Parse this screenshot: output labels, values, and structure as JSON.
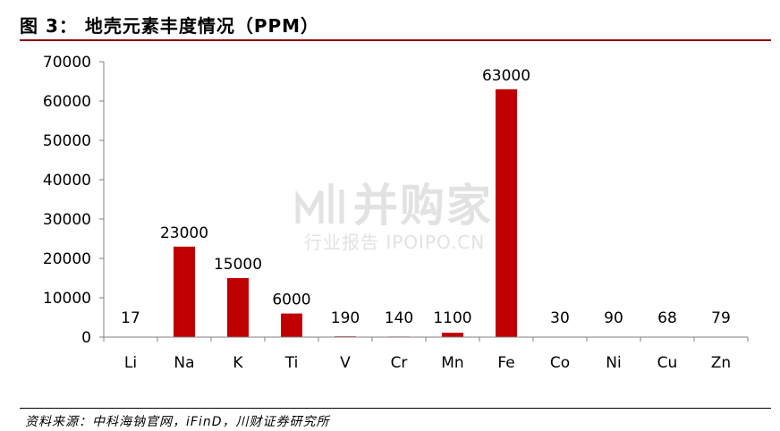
{
  "header": {
    "title": "图 3： 地壳元素丰度情况（PPM）"
  },
  "footer": {
    "source": "资料来源：中科海钠官网，iFinD，川财证券研究所"
  },
  "watermark": {
    "main": "并购家",
    "sub": "行业报告 IPOIPO.CN"
  },
  "colors": {
    "bar": "#c00000",
    "accent_rule": "#8b0000",
    "axis": "#808080"
  },
  "chart_data": {
    "type": "bar",
    "title": "",
    "xlabel": "",
    "ylabel": "",
    "ylim": [
      0,
      70000
    ],
    "yticks": [
      0,
      10000,
      20000,
      30000,
      40000,
      50000,
      60000,
      70000
    ],
    "grid": false,
    "legend": "none",
    "categories": [
      "Li",
      "Na",
      "K",
      "Ti",
      "V",
      "Cr",
      "Mn",
      "Fe",
      "Co",
      "Ni",
      "Cu",
      "Zn"
    ],
    "values": [
      17,
      23000,
      15000,
      6000,
      190,
      140,
      1100,
      63000,
      30,
      90,
      68,
      79
    ],
    "data_labels": [
      "17",
      "23000",
      "15000",
      "6000",
      "190",
      "140",
      "1100",
      "63000",
      "30",
      "90",
      "68",
      "79"
    ]
  }
}
